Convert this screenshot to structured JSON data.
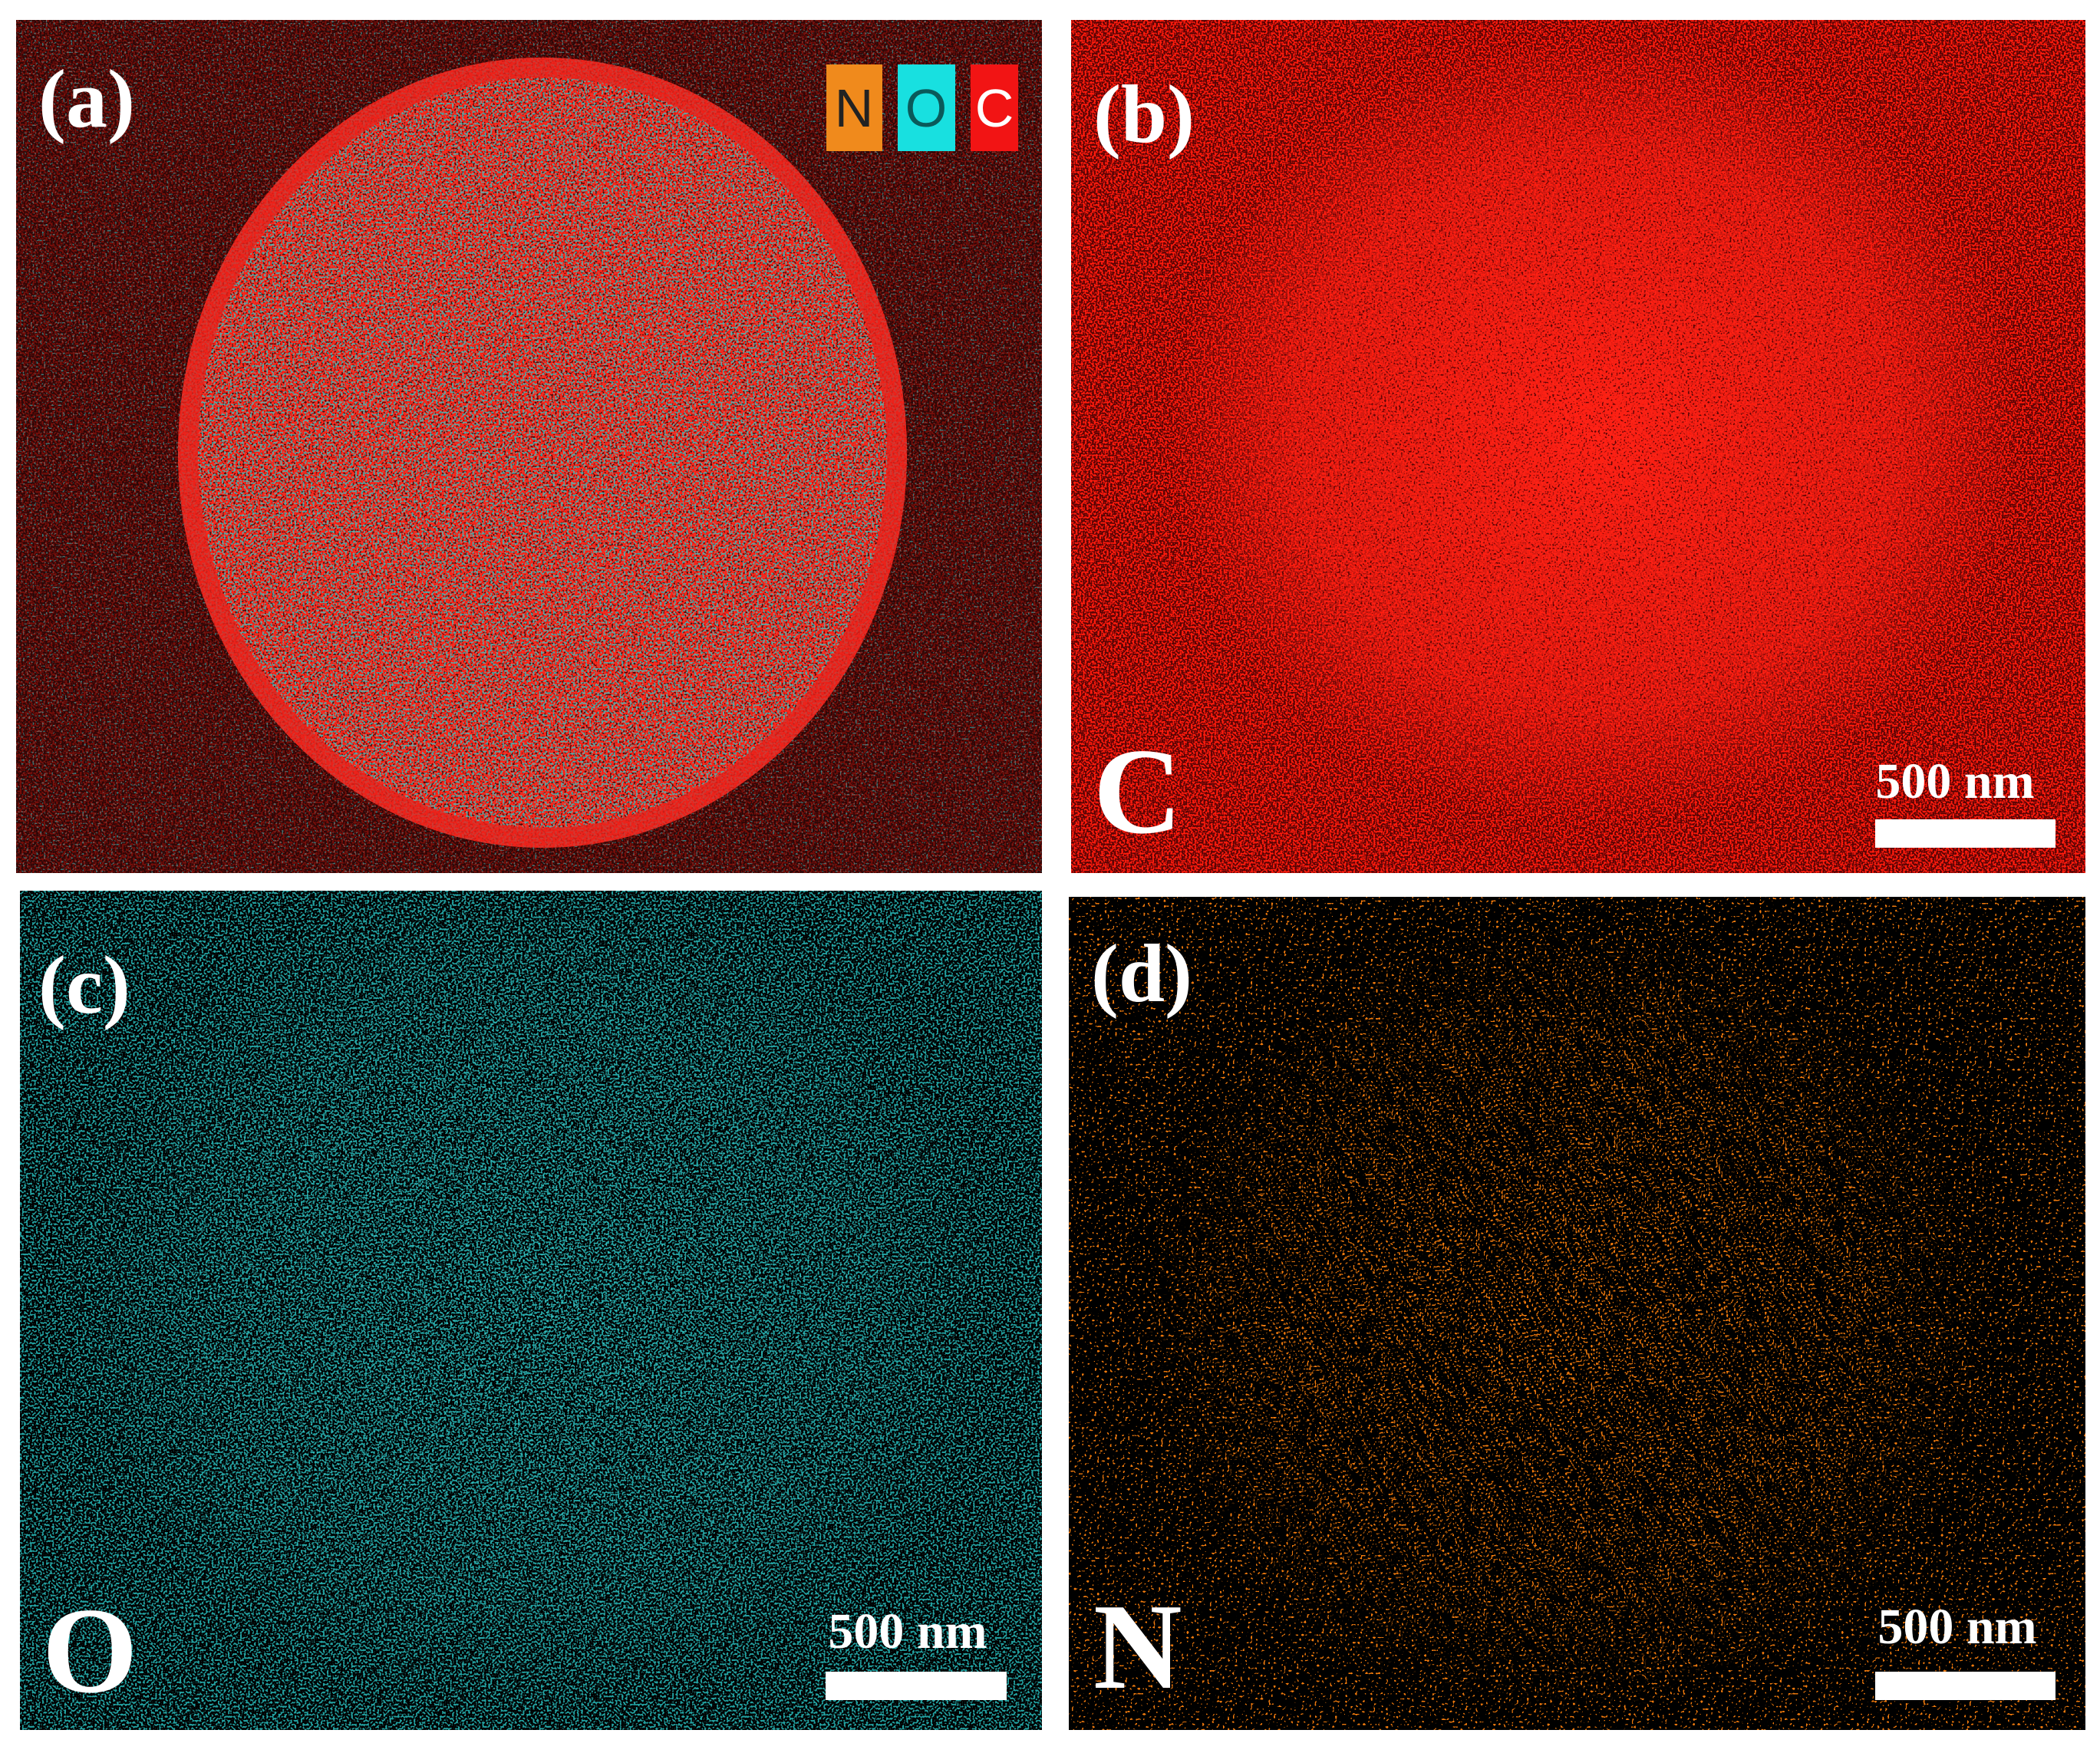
{
  "panels": [
    {
      "label": "(a)",
      "legend": [
        "N",
        "O",
        "C"
      ]
    },
    {
      "label": "(b)",
      "element": "C",
      "scale_bar": "500 nm"
    },
    {
      "label": "(c)",
      "element": "O",
      "scale_bar": "500 nm"
    },
    {
      "label": "(d)",
      "element": "N",
      "scale_bar": "500 nm"
    }
  ]
}
